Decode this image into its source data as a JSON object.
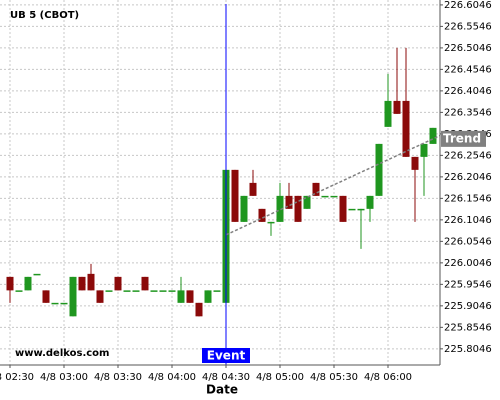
{
  "chart_data": {
    "type": "candlestick",
    "title": "UB 5 (CBOT)",
    "watermark": "www.delkos.com",
    "x_label": "Date",
    "categories": [
      "4/8 02:30",
      null,
      null,
      null,
      null,
      null,
      "4/8 03:00",
      null,
      null,
      null,
      null,
      null,
      "4/8 03:30",
      null,
      null,
      null,
      null,
      null,
      "4/8 04:00",
      null,
      null,
      null,
      null,
      null,
      "4/8 04:30",
      null,
      null,
      null,
      null,
      null,
      "4/8 05:00",
      null,
      null,
      null,
      null,
      null,
      "4/8 05:30",
      null,
      null,
      null,
      null,
      null,
      "4/8 06:00",
      null,
      null,
      null,
      null,
      null
    ],
    "open": [
      225.972,
      225.9406,
      225.9406,
      225.979,
      225.9406,
      225.9116,
      225.9116,
      225.8802,
      225.972,
      225.979,
      225.9406,
      225.9406,
      225.972,
      225.9406,
      225.9406,
      225.972,
      225.9406,
      225.9406,
      225.9406,
      225.9116,
      225.9406,
      225.9116,
      225.9116,
      225.9406,
      225.9116,
      226.2209,
      226.0999,
      226.1906,
      226.1302,
      226.0999,
      226.0999,
      226.1604,
      226.1604,
      226.1302,
      226.1906,
      226.1604,
      226.1604,
      226.1604,
      226.1302,
      226.1302,
      226.1302,
      226.1604,
      226.3209,
      226.3813,
      226.3813,
      226.2511,
      226.2511,
      226.2813
    ],
    "high": [
      225.972,
      225.9406,
      225.972,
      225.979,
      225.9406,
      225.9116,
      225.9116,
      225.972,
      225.972,
      226.0023,
      225.9406,
      225.9406,
      225.972,
      225.9406,
      225.9406,
      225.972,
      225.9406,
      225.9406,
      225.9406,
      225.972,
      225.9406,
      225.9116,
      225.9406,
      225.9406,
      226.2209,
      226.2209,
      226.1604,
      226.2209,
      226.1302,
      226.0999,
      226.1906,
      226.1906,
      226.1604,
      226.1604,
      226.1906,
      226.1604,
      226.1604,
      226.1604,
      226.1302,
      226.1302,
      226.1604,
      226.2813,
      226.4441,
      226.5046,
      226.5046,
      226.2511,
      226.2813,
      226.3186
    ],
    "low": [
      225.9116,
      225.9406,
      225.9406,
      225.979,
      225.9116,
      225.9116,
      225.9116,
      225.8802,
      225.9406,
      225.9406,
      225.9116,
      225.9406,
      225.9406,
      225.9406,
      225.9406,
      225.9406,
      225.9406,
      225.9406,
      225.9406,
      225.9116,
      225.9116,
      225.8802,
      225.9116,
      225.9406,
      225.9116,
      226.0999,
      226.0999,
      226.1604,
      226.0999,
      226.0674,
      226.0999,
      226.1302,
      226.0999,
      226.1302,
      226.1604,
      226.1604,
      226.1604,
      226.0999,
      226.1302,
      226.0372,
      226.0999,
      226.1604,
      226.3209,
      226.3511,
      226.2511,
      226.0999,
      226.1604,
      226.2813
    ],
    "close": [
      225.9406,
      225.9406,
      225.972,
      225.979,
      225.9116,
      225.9116,
      225.9116,
      225.972,
      225.9406,
      225.9406,
      225.9116,
      225.9406,
      225.9406,
      225.9406,
      225.9406,
      225.9406,
      225.9406,
      225.9406,
      225.9406,
      225.9406,
      225.9116,
      225.8802,
      225.9406,
      225.9406,
      226.2209,
      226.0999,
      226.1604,
      226.1604,
      226.0999,
      226.0999,
      226.1604,
      226.1302,
      226.0999,
      226.1604,
      226.1604,
      226.1604,
      226.1604,
      226.0999,
      226.1302,
      226.1302,
      226.1604,
      226.2813,
      226.3813,
      226.3511,
      226.2511,
      226.2209,
      226.2813,
      226.3186
    ],
    "up_color": "#1f961f",
    "down_color": "#8b0a0a",
    "ylim": [
      225.767,
      226.616
    ],
    "yticks": [
      225.8046,
      225.8546,
      225.9046,
      225.9546,
      226.0046,
      226.0546,
      226.1046,
      226.1546,
      226.2046,
      226.2546,
      226.3046,
      226.3546,
      226.4046,
      226.4546,
      226.5046,
      226.5546,
      226.6046
    ],
    "grid": true,
    "event": {
      "label": "Event",
      "index": 24,
      "color": "#0000ff"
    },
    "trend": {
      "label": "Trend",
      "start_index": 24,
      "start": 226.0697,
      "end_index": 47,
      "end": 226.293
    }
  }
}
